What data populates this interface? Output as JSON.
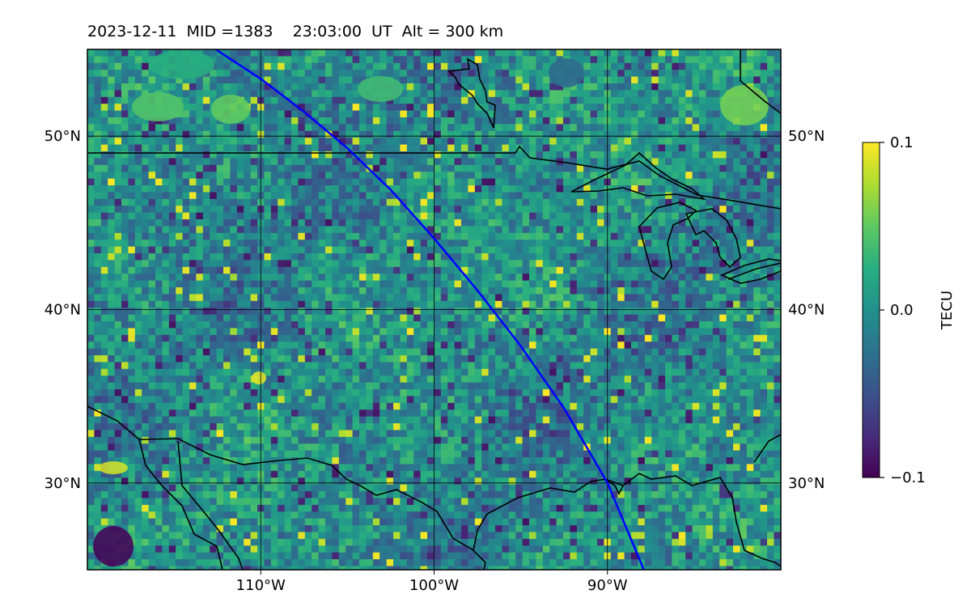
{
  "title": "2023-12-11  MID =1383    23:03:00  UT  Alt = 300 km",
  "map": {
    "lon_range": [
      -120,
      -80
    ],
    "lat_range": [
      25,
      55
    ],
    "lon_ticks": [
      {
        "value": -110,
        "label": "110°W"
      },
      {
        "value": -100,
        "label": "100°W"
      },
      {
        "value": -90,
        "label": "90°W"
      }
    ],
    "lat_ticks": [
      {
        "value": 50,
        "label": "50°N"
      },
      {
        "value": 40,
        "label": "40°N"
      },
      {
        "value": 30,
        "label": "30°N"
      }
    ],
    "grid": true,
    "colormap": "viridis",
    "track_color": "#0000ff",
    "track_points": [
      [
        -112.6,
        55.0
      ],
      [
        -110.0,
        53.3
      ],
      [
        -107.5,
        51.4
      ],
      [
        -105.0,
        49.3
      ],
      [
        -102.5,
        46.9
      ],
      [
        -100.0,
        44.1
      ],
      [
        -97.5,
        41.1
      ],
      [
        -95.0,
        37.9
      ],
      [
        -92.5,
        34.3
      ],
      [
        -90.0,
        30.0
      ],
      [
        -87.9,
        25.0
      ]
    ]
  },
  "colorbar": {
    "label": "TECU",
    "min": -0.1,
    "max": 0.1,
    "ticks": [
      {
        "value": 0.1,
        "label": "0.1"
      },
      {
        "value": 0.0,
        "label": "0.0"
      },
      {
        "value": -0.1,
        "label": "−0.1"
      }
    ]
  }
}
